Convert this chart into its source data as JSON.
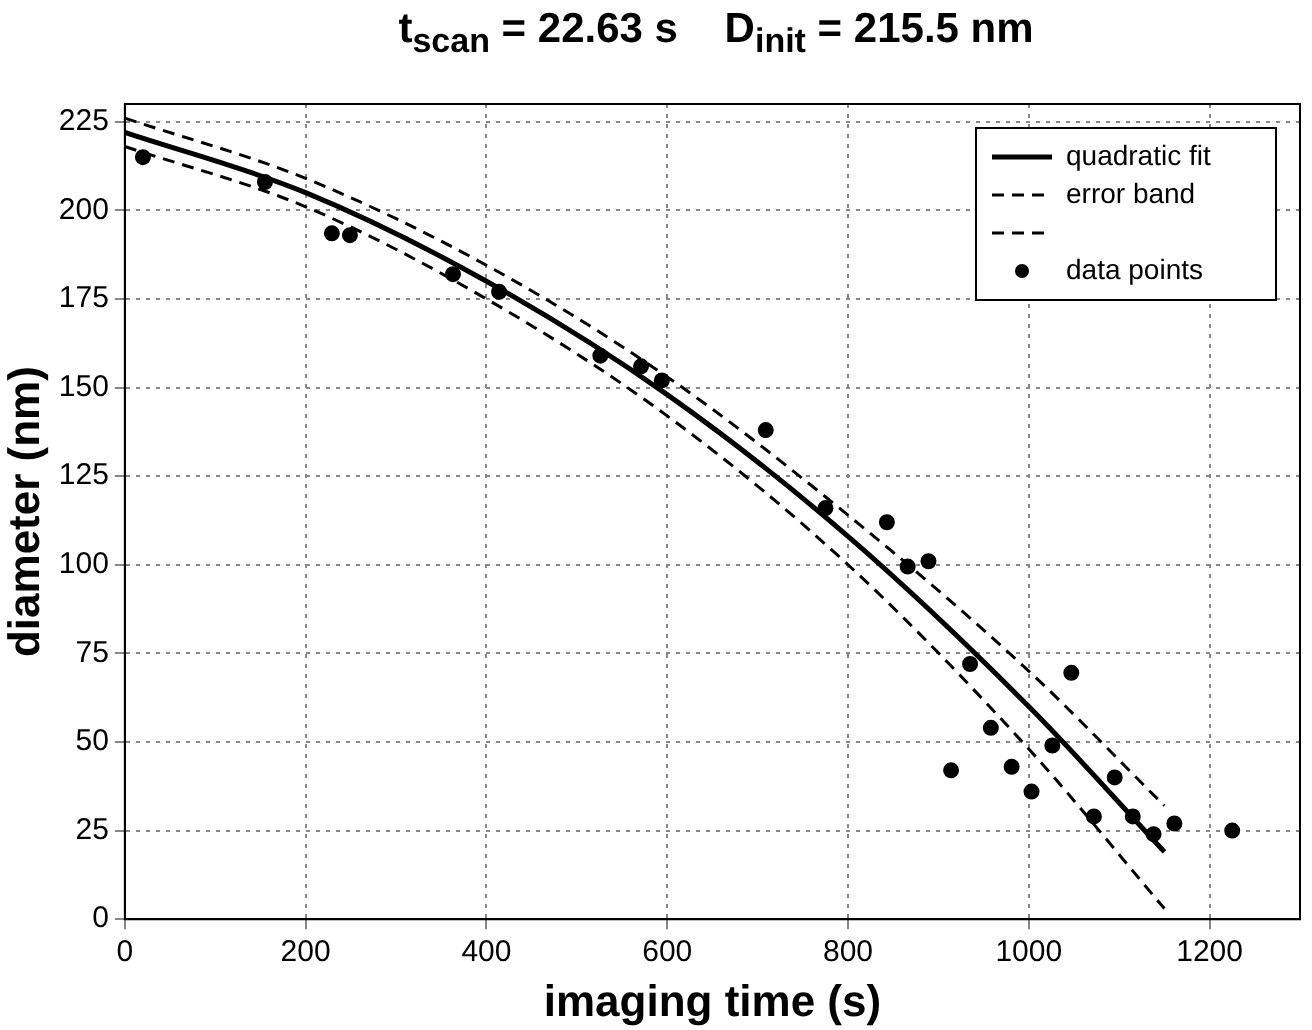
{
  "chart_data": {
    "type": "scatter",
    "title": "t$_{scan}$ = 22.63 s    D$_{init}$ = 215.5 nm",
    "xlabel": "imaging time (s)",
    "ylabel": "diameter (nm)",
    "xlim": [
      0,
      1300
    ],
    "xticks": [
      0,
      200,
      400,
      600,
      800,
      1000,
      1200
    ],
    "ylim": [
      0,
      230
    ],
    "yticks": [
      0,
      25,
      50,
      75,
      100,
      125,
      150,
      175,
      200,
      225
    ],
    "grid": true,
    "legend": "top right",
    "series": [
      {
        "name": "quadratic fit",
        "type": "line",
        "color": "#000000",
        "line_style": "solid",
        "marker": "none",
        "x": [
          0,
          200,
          400,
          600,
          800,
          1000,
          1150
        ],
        "values": [
          222,
          205,
          180,
          148,
          108,
          60,
          19
        ]
      },
      {
        "name": "error band",
        "type": "line",
        "color": "#000000",
        "line_style": "dashed",
        "marker": "none",
        "x": [
          0,
          200,
          400,
          600,
          800,
          1000,
          1150
        ],
        "values": [
          226,
          209,
          184.5,
          153,
          114,
          70,
          32
        ]
      },
      {
        "type": "line",
        "color": "#000000",
        "line_style": "dashed",
        "marker": "none",
        "x": [
          0,
          200,
          400,
          600,
          800,
          1000,
          1150
        ],
        "values": [
          218,
          201,
          175,
          142,
          100,
          48,
          3
        ]
      },
      {
        "name": "data points",
        "color": "#000000",
        "marker": "circle",
        "x": [
          20,
          155,
          229,
          249,
          363,
          414,
          526,
          571,
          594,
          709,
          775,
          843,
          866,
          889,
          914,
          935,
          958,
          981,
          1003,
          1026,
          1047,
          1072,
          1095,
          1115,
          1138,
          1161,
          1225
        ],
        "values": [
          215,
          208,
          193.5,
          193,
          182,
          177,
          159,
          156,
          152,
          138,
          116,
          112,
          99.5,
          101,
          42,
          72,
          54,
          43,
          36,
          49,
          69.5,
          29,
          40,
          29,
          24,
          27,
          25
        ]
      }
    ]
  }
}
